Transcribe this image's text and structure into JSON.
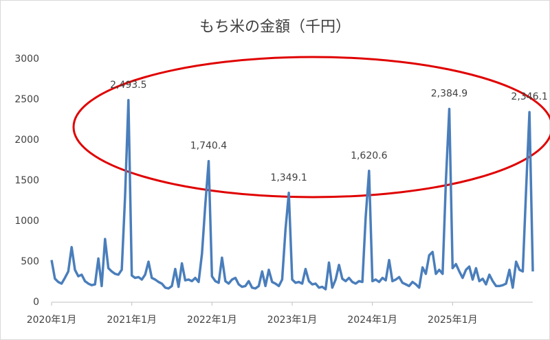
{
  "chart_data": {
    "type": "line",
    "title": "もち米の金額（千円）",
    "categories": [
      "2020年1月",
      null,
      null,
      null,
      null,
      null,
      null,
      null,
      null,
      null,
      null,
      null,
      null,
      null,
      null,
      null,
      null,
      null,
      null,
      null,
      null,
      null,
      null,
      null,
      "2021年1月",
      null,
      null,
      null,
      null,
      null,
      null,
      null,
      null,
      null,
      null,
      null,
      null,
      null,
      null,
      null,
      null,
      null,
      null,
      null,
      null,
      null,
      null,
      null,
      "2022年1月",
      null,
      null,
      null,
      null,
      null,
      null,
      null,
      null,
      null,
      null,
      null,
      null,
      null,
      null,
      null,
      null,
      null,
      null,
      null,
      null,
      null,
      null,
      null,
      "2023年1月",
      null,
      null,
      null,
      null,
      null,
      null,
      null,
      null,
      null,
      null,
      null,
      null,
      null,
      null,
      null,
      null,
      null,
      null,
      null,
      null,
      null,
      null,
      null,
      "2024年1月",
      null,
      null,
      null,
      null,
      null,
      null,
      null,
      null,
      null,
      null,
      null,
      null,
      null,
      null,
      null,
      null,
      null,
      null,
      null,
      null,
      null,
      null,
      null,
      "2025年1月",
      null,
      null,
      null,
      null,
      null,
      null,
      null,
      null,
      null,
      null,
      null,
      null,
      null,
      null,
      null,
      null,
      null,
      null,
      null,
      null,
      null,
      null,
      null,
      null
    ],
    "values": [
      520,
      290,
      250,
      230,
      300,
      380,
      680,
      400,
      320,
      340,
      260,
      230,
      210,
      220,
      540,
      200,
      780,
      420,
      380,
      350,
      340,
      400,
      1300,
      2493.5,
      330,
      300,
      310,
      280,
      340,
      500,
      300,
      280,
      250,
      230,
      180,
      170,
      200,
      410,
      190,
      480,
      270,
      280,
      260,
      300,
      250,
      600,
      1200,
      1740.4,
      320,
      260,
      240,
      550,
      260,
      230,
      280,
      300,
      220,
      190,
      200,
      260,
      180,
      170,
      200,
      380,
      200,
      400,
      250,
      230,
      200,
      280,
      900,
      1349.1,
      280,
      240,
      250,
      230,
      410,
      260,
      220,
      230,
      180,
      190,
      160,
      490,
      180,
      280,
      460,
      290,
      260,
      300,
      250,
      230,
      260,
      250,
      1050,
      1620.6,
      260,
      280,
      250,
      300,
      270,
      520,
      260,
      280,
      310,
      240,
      220,
      200,
      250,
      220,
      180,
      430,
      350,
      580,
      620,
      350,
      400,
      350,
      1500,
      2384.9,
      420,
      470,
      380,
      300,
      400,
      440,
      280,
      420,
      260,
      290,
      220,
      340,
      260,
      200,
      200,
      210,
      230,
      400,
      180,
      500,
      400,
      380,
      1400,
      2346.1,
      380
    ],
    "value_labels": [
      null,
      null,
      null,
      null,
      null,
      null,
      null,
      null,
      null,
      null,
      null,
      null,
      null,
      null,
      null,
      null,
      null,
      null,
      null,
      null,
      null,
      null,
      null,
      "2,493.5",
      null,
      null,
      null,
      null,
      null,
      null,
      null,
      null,
      null,
      null,
      null,
      null,
      null,
      null,
      null,
      null,
      null,
      null,
      null,
      null,
      null,
      null,
      null,
      "1,740.4",
      null,
      null,
      null,
      null,
      null,
      null,
      null,
      null,
      null,
      null,
      null,
      null,
      null,
      null,
      null,
      null,
      null,
      null,
      null,
      null,
      null,
      null,
      null,
      "1,349.1",
      null,
      null,
      null,
      null,
      null,
      null,
      null,
      null,
      null,
      null,
      null,
      null,
      null,
      null,
      null,
      null,
      null,
      null,
      null,
      null,
      null,
      null,
      null,
      "1,620.6",
      null,
      null,
      null,
      null,
      null,
      null,
      null,
      null,
      null,
      null,
      null,
      null,
      null,
      null,
      null,
      null,
      null,
      null,
      null,
      null,
      null,
      null,
      null,
      "2,384.9",
      null,
      null,
      null,
      null,
      null,
      null,
      null,
      null,
      null,
      null,
      null,
      null,
      null,
      null,
      null,
      null,
      null,
      null,
      null,
      null,
      null,
      null,
      null,
      "2,346.1",
      null
    ],
    "color": "#4a7ebb",
    "ylim": [
      0,
      3000
    ],
    "yticks": [
      0,
      500,
      1000,
      1500,
      2000,
      2500,
      3000
    ]
  }
}
